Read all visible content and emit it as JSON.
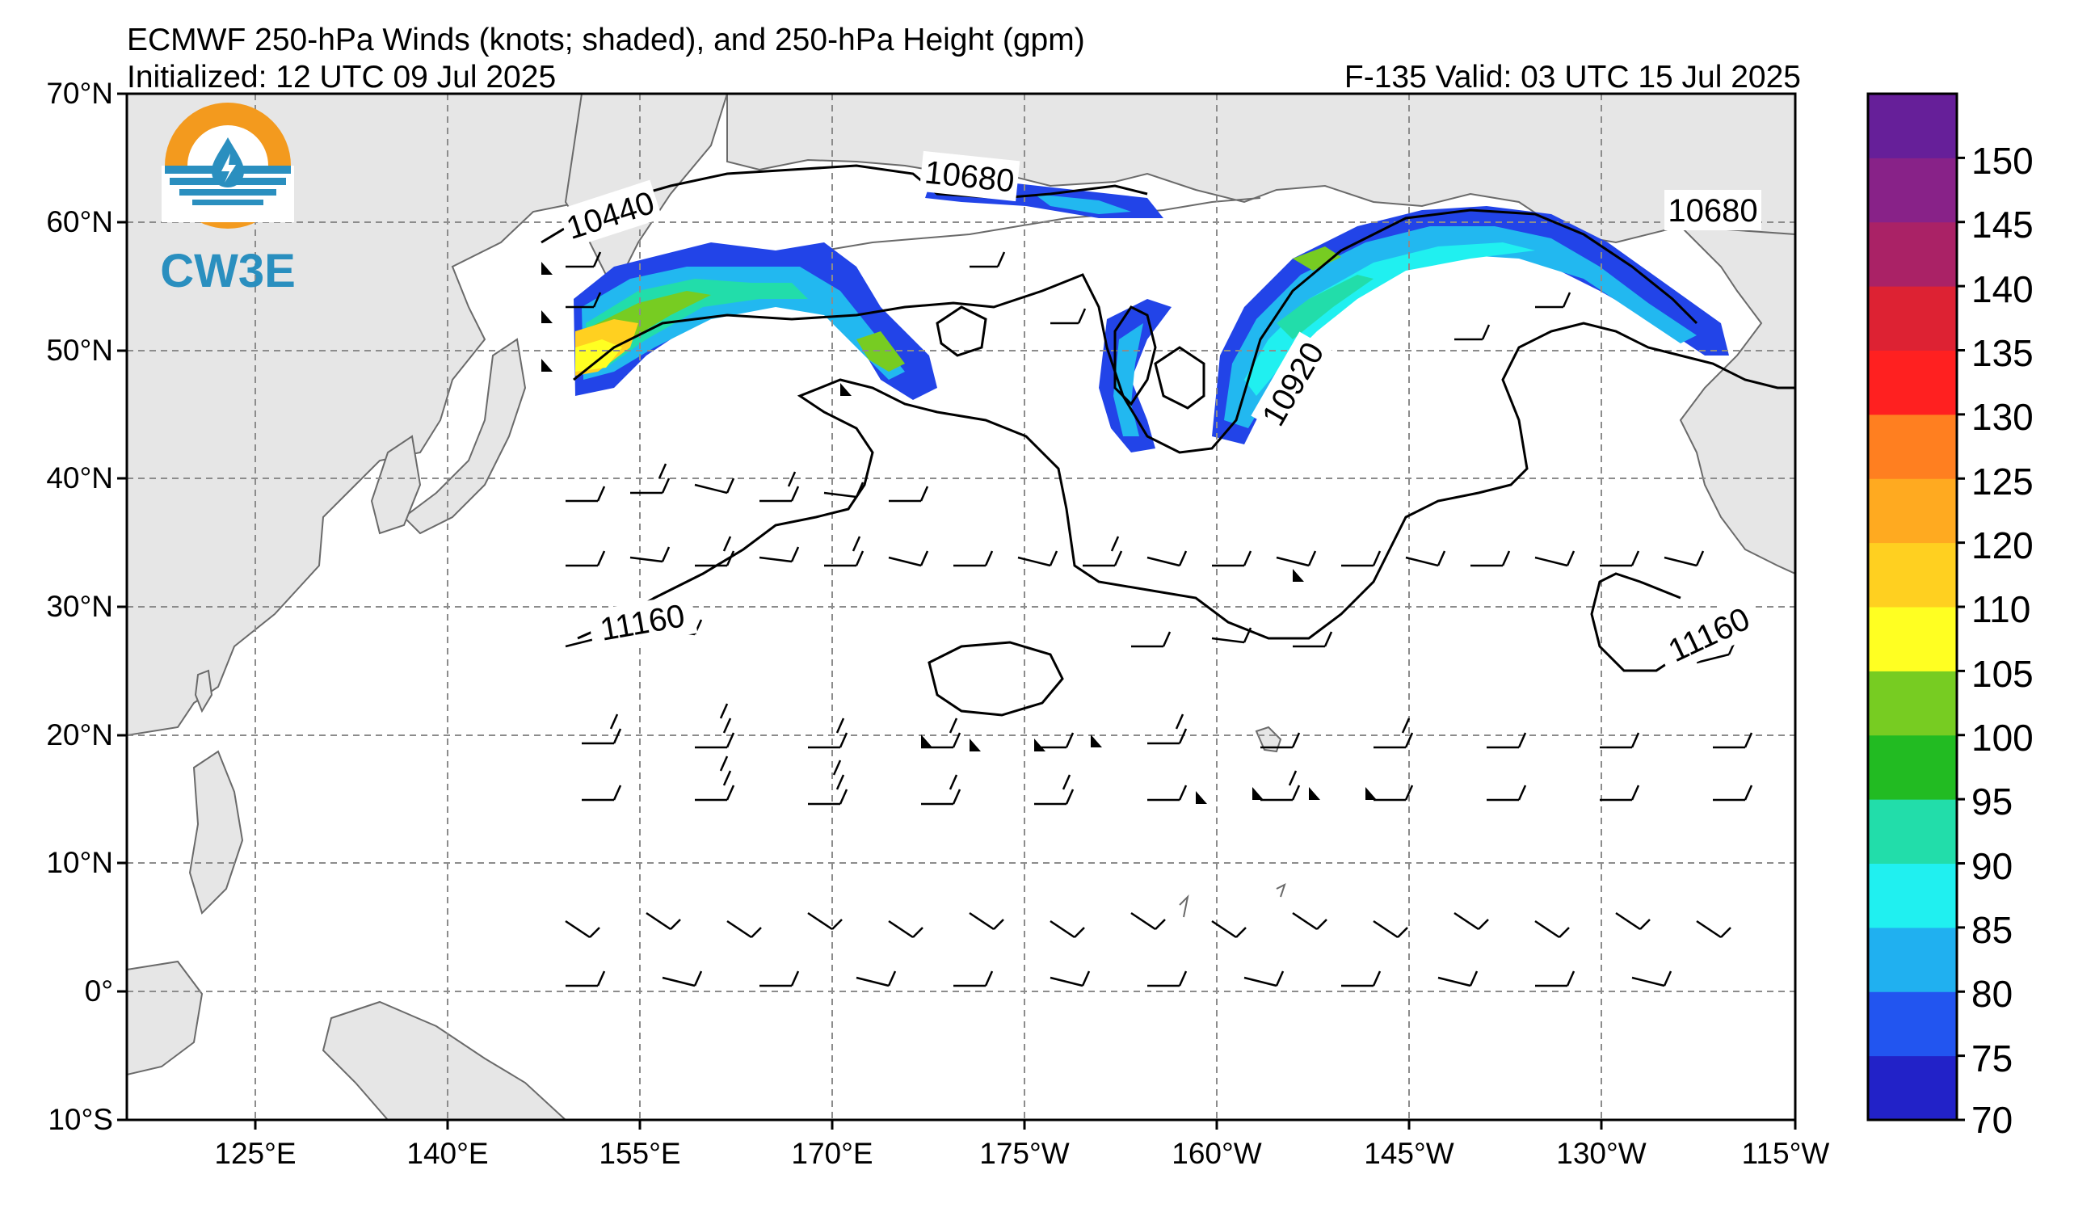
{
  "header": {
    "title": "ECMWF 250-hPa Winds (knots; shaded), and 250-hPa Height (gpm)",
    "initialized": "Initialized: 12 UTC 09 Jul 2025",
    "valid": "F-135  Valid: 03 UTC 15 Jul 2025"
  },
  "logo": {
    "text": "CW3E",
    "ring_color": "#f39a1e",
    "water_color": "#2a8fbf"
  },
  "map": {
    "lat_labels": [
      "70°N",
      "60°N",
      "50°N",
      "40°N",
      "30°N",
      "20°N",
      "10°N",
      "0°",
      "10°S"
    ],
    "lon_labels": [
      "125°E",
      "140°E",
      "155°E",
      "170°E",
      "175°W",
      "160°W",
      "145°W",
      "130°W",
      "115°W"
    ],
    "height_contour_labels": [
      "10440",
      "10680",
      "10680",
      "10920",
      "11160",
      "11160"
    ],
    "land_color": "#e6e6e6",
    "ocean_color": "#ffffff",
    "grid": "dashed-gray"
  },
  "colorbar": {
    "ticks": [
      "150",
      "145",
      "140",
      "135",
      "130",
      "125",
      "120",
      "110",
      "105",
      "100",
      "95",
      "90",
      "85",
      "80",
      "75",
      "70"
    ],
    "colors": [
      "#2222c8",
      "#2255f0",
      "#20b0f0",
      "#20f0f0",
      "#22ddaa",
      "#22bb22",
      "#77cc22",
      "#ffff22",
      "#ffd020",
      "#ffaa20",
      "#ff7f20",
      "#ff2020",
      "#dd2233",
      "#aa2266",
      "#882288",
      "#661f99"
    ]
  }
}
